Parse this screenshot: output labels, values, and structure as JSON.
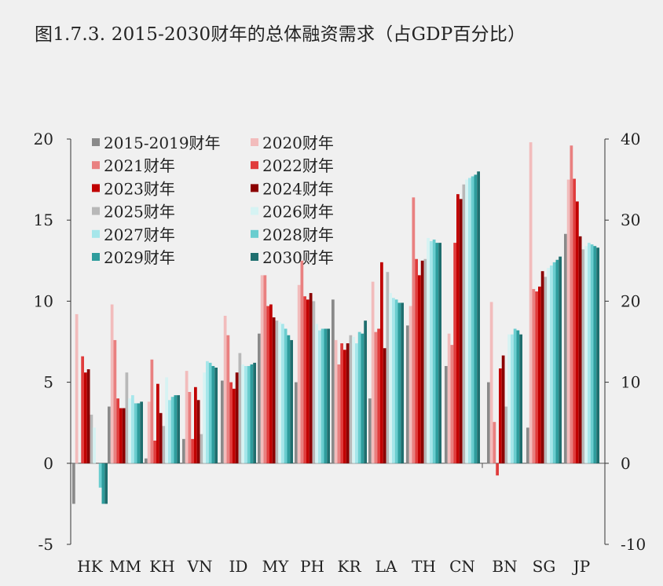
{
  "title": "图1.7.3. 2015-2030财年的总体融资需求（占GDP百分比）",
  "chart_data": {
    "type": "bar",
    "left_axis": {
      "ylim": [
        -5,
        20
      ],
      "ticks": [
        "20",
        "15",
        "10",
        "5",
        "0",
        "-5"
      ],
      "tick_values": [
        20,
        15,
        10,
        5,
        0,
        -5
      ],
      "applies_to": [
        "HK",
        "MM",
        "KH",
        "VN",
        "ID",
        "MY",
        "PH",
        "KR",
        "LA",
        "TH",
        "CN"
      ]
    },
    "right_axis": {
      "ylim": [
        -10,
        40
      ],
      "ticks": [
        "40",
        "30",
        "20",
        "10",
        "0",
        "-10"
      ],
      "tick_values": [
        40,
        30,
        20,
        10,
        0,
        -10
      ],
      "applies_to": [
        "BN",
        "SG",
        "JP"
      ]
    },
    "groups_left": [
      "HK",
      "MM",
      "KH",
      "VN",
      "ID",
      "MY",
      "PH",
      "KR",
      "LA",
      "TH",
      "CN"
    ],
    "groups_right": [
      "BN",
      "SG",
      "JP"
    ],
    "legend_position": "top-left",
    "series": [
      {
        "name": "2015-2019财年",
        "color": "#8a8a8a",
        "values": [
          -2.5,
          3.5,
          0.3,
          1.5,
          5.1,
          8.0,
          5.0,
          10.1,
          4.0,
          8.5,
          6.0,
          10.0,
          4.4,
          28.3
        ]
      },
      {
        "name": "2020财年",
        "color": "#f2bcbc",
        "values": [
          9.2,
          9.8,
          3.8,
          5.7,
          9.1,
          11.6,
          11.0,
          7.6,
          11.2,
          9.7,
          8.0,
          19.9,
          39.6,
          35.0
        ]
      },
      {
        "name": "2021财年",
        "color": "#e98080",
        "values": [
          0.0,
          7.6,
          6.4,
          4.4,
          7.9,
          11.6,
          12.5,
          6.1,
          8.1,
          16.4,
          7.3,
          5.1,
          21.5,
          39.2
        ]
      },
      {
        "name": "2022财年",
        "color": "#e03c3c",
        "values": [
          6.6,
          4.0,
          1.4,
          1.5,
          5.0,
          9.7,
          10.3,
          7.4,
          8.3,
          12.6,
          13.6,
          -1.5,
          21.2,
          35.1
        ]
      },
      {
        "name": "2023财年",
        "color": "#c00000",
        "values": [
          5.6,
          3.4,
          4.9,
          4.7,
          4.6,
          9.8,
          10.1,
          7.0,
          12.4,
          11.6,
          16.6,
          11.7,
          21.8,
          32.3
        ]
      },
      {
        "name": "2024财年",
        "color": "#8b0000",
        "values": [
          5.8,
          3.4,
          3.1,
          3.9,
          5.6,
          9.0,
          10.5,
          7.4,
          7.1,
          12.5,
          16.3,
          13.3,
          23.7,
          28.0
        ]
      },
      {
        "name": "2025财年",
        "color": "#b8b8b8",
        "values": [
          3.0,
          5.6,
          2.3,
          1.8,
          6.8,
          8.8,
          10.0,
          7.9,
          11.8,
          12.6,
          17.2,
          7.0,
          23.0,
          26.4
        ]
      },
      {
        "name": "2026财年",
        "color": "#d6f3f3",
        "values": [
          2.2,
          4.0,
          5.3,
          5.6,
          6.1,
          8.7,
          8.6,
          7.8,
          10.5,
          13.9,
          17.5,
          15.9,
          24.1,
          26.8
        ]
      },
      {
        "name": "2027财年",
        "color": "#a6e6ea",
        "values": [
          0.0,
          4.2,
          3.9,
          6.3,
          6.0,
          8.6,
          8.2,
          7.4,
          10.2,
          13.7,
          17.6,
          15.9,
          24.4,
          27.2
        ]
      },
      {
        "name": "2028财年",
        "color": "#6acdcf",
        "values": [
          -1.5,
          3.7,
          4.1,
          6.2,
          6.0,
          8.3,
          8.3,
          8.1,
          10.1,
          13.8,
          17.7,
          16.6,
          24.8,
          27.0
        ]
      },
      {
        "name": "2029财年",
        "color": "#2e9c9c",
        "values": [
          -2.5,
          3.7,
          4.2,
          6.0,
          6.1,
          7.9,
          8.3,
          8.0,
          9.9,
          13.6,
          17.8,
          16.4,
          25.1,
          26.8
        ]
      },
      {
        "name": "2030财年",
        "color": "#1e6e6e",
        "values": [
          -2.5,
          3.8,
          4.2,
          5.9,
          6.2,
          7.6,
          8.3,
          8.8,
          9.9,
          13.6,
          18.0,
          15.9,
          25.5,
          26.6
        ]
      }
    ]
  }
}
